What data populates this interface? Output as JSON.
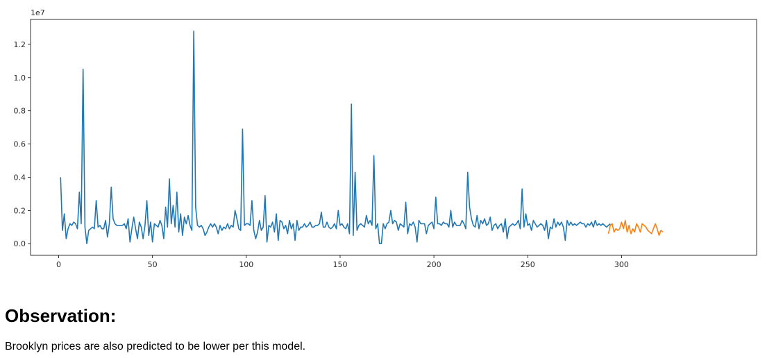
{
  "chart_data": {
    "type": "line",
    "title": "",
    "xlabel": "",
    "ylabel": "",
    "y_offset_label": "1e7",
    "xlim": [
      -15,
      372
    ],
    "ylim": [
      -0.07,
      1.35
    ],
    "x_ticks": [
      0,
      50,
      100,
      150,
      200,
      250,
      300
    ],
    "y_ticks": [
      0.0,
      0.2,
      0.4,
      0.6,
      0.8,
      1.0,
      1.2
    ],
    "y_tick_labels": [
      "0.0",
      "0.2",
      "0.4",
      "0.6",
      "0.8",
      "1.0",
      "1.2"
    ],
    "grid": false,
    "legend": false,
    "colors": {
      "history": "#1f77b4",
      "forecast": "#ff7f0e"
    },
    "series": [
      {
        "x_start": 1,
        "values": [
          0.4,
          0.08,
          0.18,
          0.03,
          0.09,
          0.12,
          0.11,
          0.13,
          0.12,
          0.09,
          0.31,
          0.12,
          1.05,
          0.1,
          0.0,
          0.08,
          0.09,
          0.1,
          0.09,
          0.26,
          0.1,
          0.11,
          0.09,
          0.09,
          0.14,
          0.04,
          0.12,
          0.34,
          0.15,
          0.12,
          0.11,
          0.11,
          0.11,
          0.11,
          0.12,
          0.09,
          0.15,
          0.01,
          0.09,
          0.16,
          0.09,
          0.03,
          0.13,
          0.1,
          0.03,
          0.11,
          0.26,
          0.05,
          0.13,
          0.01,
          0.12,
          0.11,
          0.1,
          0.14,
          0.11,
          0.03,
          0.22,
          0.1,
          0.39,
          0.12,
          0.23,
          0.1,
          0.31,
          0.07,
          0.18,
          0.05,
          0.16,
          0.12,
          0.17,
          0.11,
          0.08,
          1.28,
          0.22,
          0.11,
          0.1,
          0.11,
          0.09,
          0.05,
          0.07,
          0.1,
          0.12,
          0.1,
          0.12,
          0.1,
          0.06,
          0.11,
          0.08,
          0.1,
          0.09,
          0.12,
          0.09,
          0.11,
          0.1,
          0.2,
          0.15,
          0.09,
          0.08,
          0.69,
          0.11,
          0.12,
          0.12,
          0.11,
          0.26,
          0.08,
          0.03,
          0.07,
          0.14,
          0.08,
          0.1,
          0.29,
          0.01,
          0.11,
          0.1,
          0.13,
          0.07,
          0.18,
          0.02,
          0.14,
          0.13,
          0.09,
          0.11,
          0.06,
          0.14,
          0.09,
          0.12,
          0.02,
          0.14,
          0.08,
          0.1,
          0.1,
          0.12,
          0.1,
          0.11,
          0.13,
          0.1,
          0.1,
          0.11,
          0.11,
          0.12,
          0.19,
          0.1,
          0.1,
          0.13,
          0.1,
          0.09,
          0.1,
          0.12,
          0.09,
          0.2,
          0.11,
          0.12,
          0.1,
          0.09,
          0.12,
          0.06,
          0.84,
          0.05,
          0.43,
          0.08,
          0.11,
          0.12,
          0.11,
          0.1,
          0.17,
          0.12,
          0.14,
          0.11,
          0.53,
          0.09,
          0.12,
          0.0,
          0.0,
          0.12,
          0.09,
          0.12,
          0.13,
          0.2,
          0.12,
          0.14,
          0.13,
          0.08,
          0.12,
          0.11,
          0.1,
          0.25,
          0.06,
          0.12,
          0.11,
          0.13,
          0.1,
          0.01,
          0.14,
          0.12,
          0.12,
          0.12,
          0.06,
          0.11,
          0.12,
          0.13,
          0.09,
          0.28,
          0.12,
          0.12,
          0.11,
          0.13,
          0.12,
          0.12,
          0.1,
          0.2,
          0.1,
          0.13,
          0.11,
          0.11,
          0.11,
          0.14,
          0.12,
          0.09,
          0.43,
          0.22,
          0.15,
          0.11,
          0.1,
          0.17,
          0.09,
          0.14,
          0.12,
          0.15,
          0.11,
          0.12,
          0.16,
          0.08,
          0.11,
          0.12,
          0.09,
          0.11,
          0.12,
          0.07,
          0.15,
          0.03,
          0.1,
          0.11,
          0.12,
          0.11,
          0.12,
          0.14,
          0.09,
          0.33,
          0.1,
          0.18,
          0.11,
          0.12,
          0.08,
          0.14,
          0.12,
          0.1,
          0.11,
          0.12,
          0.11,
          0.08,
          0.14,
          0.03,
          0.1,
          0.09,
          0.15,
          0.1,
          0.13,
          0.11,
          0.13,
          0.1,
          0.02,
          0.14,
          0.11,
          0.13,
          0.11,
          0.12,
          0.11,
          0.12,
          0.13,
          0.12,
          0.12,
          0.1,
          0.12,
          0.11,
          0.13,
          0.1,
          0.14,
          0.11,
          0.12,
          0.11,
          0.12,
          0.11,
          0.1,
          0.11,
          0.12
        ]
      },
      {
        "x_start": 293,
        "values": [
          0.06,
          0.11,
          0.12,
          0.07,
          0.09,
          0.08,
          0.09,
          0.13,
          0.09,
          0.14,
          0.07,
          0.11,
          0.06,
          0.09,
          0.07,
          0.12,
          0.1,
          0.07,
          0.12,
          0.11,
          0.1,
          0.08,
          0.07,
          0.06,
          0.09,
          0.12,
          0.09,
          0.05,
          0.08,
          0.07
        ]
      }
    ]
  },
  "text": {
    "heading": "Observation:",
    "note": "Brooklyn prices are also predicted to be lower per this model."
  }
}
